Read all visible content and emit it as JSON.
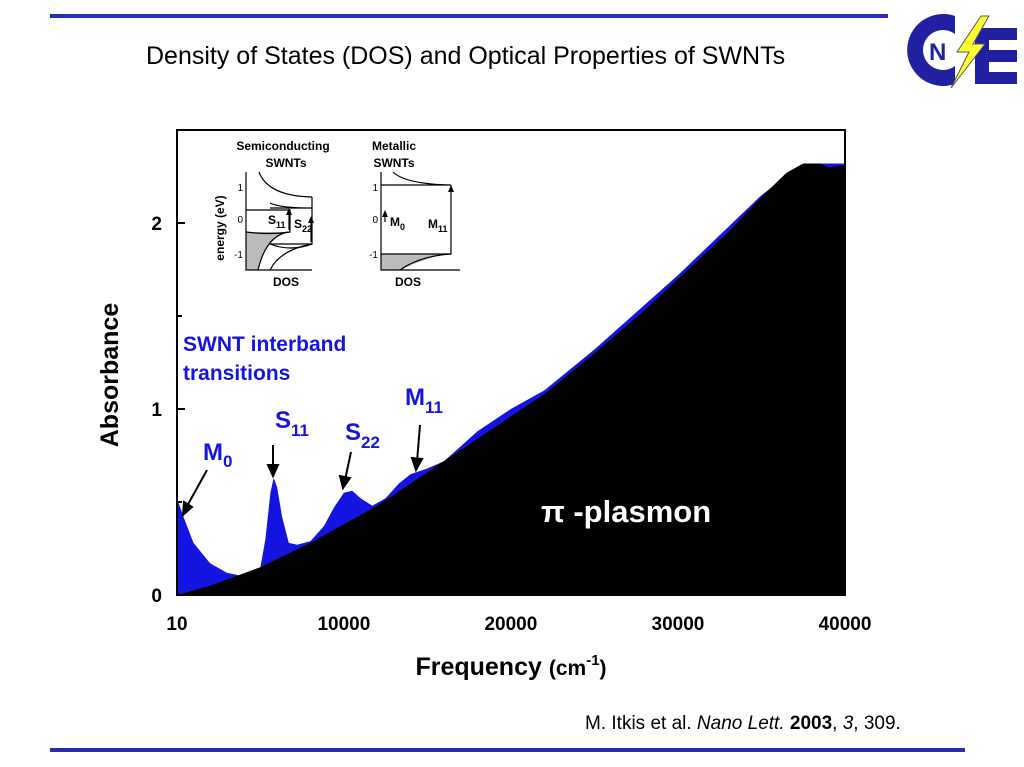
{
  "slide": {
    "title": "Density of States (DOS) and Optical Properties of SWNTs",
    "citation": {
      "authors": "M. Itkis et al.",
      "journal": "Nano Lett.",
      "year": "2003",
      "volume": "3",
      "page": ", 309."
    },
    "logo": {
      "letters": "CNE",
      "colors": {
        "primary": "#2020a0",
        "bolt": "#ffff33"
      }
    }
  },
  "chart_data": {
    "type": "area",
    "xlabel": "Frequency",
    "xlabel_unit": "(cm",
    "xlabel_exp": "-1",
    "xlabel_close": ")",
    "ylabel": "Absorbance",
    "xlim": [
      10,
      40000
    ],
    "ylim": [
      0,
      2.5
    ],
    "xticks": [
      {
        "v": 10,
        "label": "10"
      },
      {
        "v": 10000,
        "label": "10000"
      },
      {
        "v": 20000,
        "label": "20000"
      },
      {
        "v": 30000,
        "label": "30000"
      },
      {
        "v": 40000,
        "label": "40000"
      }
    ],
    "yticks": [
      {
        "v": 0,
        "label": "0"
      },
      {
        "v": 1,
        "label": "1"
      },
      {
        "v": 2,
        "label": "2"
      }
    ],
    "series": [
      {
        "name": "SWNT interband transitions",
        "color": "#1414e0",
        "x": [
          10,
          400,
          1000,
          2000,
          3000,
          4000,
          4600,
          5000,
          5300,
          5600,
          5800,
          6000,
          6300,
          6700,
          7200,
          8000,
          8800,
          9400,
          10000,
          10500,
          11000,
          11700,
          12500,
          13300,
          14000,
          15000,
          16000,
          17000,
          18000,
          20000,
          22000,
          25000,
          30000,
          35000,
          37500,
          40000
        ],
        "y": [
          0.52,
          0.42,
          0.28,
          0.17,
          0.12,
          0.1,
          0.11,
          0.15,
          0.3,
          0.55,
          0.63,
          0.58,
          0.42,
          0.28,
          0.27,
          0.29,
          0.37,
          0.47,
          0.55,
          0.56,
          0.52,
          0.48,
          0.52,
          0.6,
          0.65,
          0.68,
          0.72,
          0.8,
          0.88,
          1.0,
          1.1,
          1.32,
          1.72,
          2.15,
          2.32,
          2.32
        ]
      },
      {
        "name": "π-plasmon",
        "color": "#000000",
        "x": [
          10,
          2000,
          5000,
          8000,
          10000,
          12000,
          15000,
          17000,
          20000,
          22000,
          25000,
          28000,
          30000,
          33000,
          35000,
          36500,
          37500,
          38500,
          39000,
          40000
        ],
        "y": [
          0,
          0.05,
          0.15,
          0.28,
          0.38,
          0.48,
          0.66,
          0.78,
          0.96,
          1.08,
          1.3,
          1.53,
          1.7,
          1.95,
          2.14,
          2.27,
          2.32,
          2.32,
          2.3,
          2.31
        ]
      }
    ],
    "annotations": {
      "group": "SWNT interband",
      "group2": "transitions",
      "m0": "M",
      "m0_sub": "0",
      "s11": "S",
      "s11_sub": "11",
      "s22": "S",
      "s22_sub": "22",
      "m11": "M",
      "m11_sub": "11",
      "plasmon": "π -plasmon"
    },
    "inset": {
      "semi_title1": "Semiconducting",
      "semi_title2": "SWNTs",
      "met_title1": "Metallic",
      "met_title2": "SWNTs",
      "ylabel": "energy (eV)",
      "xlabel": "DOS",
      "yticks": [
        "1",
        "0",
        "-1"
      ],
      "s11": "S",
      "s11_sub": "11",
      "s22": "S",
      "s22_sub": "22",
      "m0": "M",
      "m0_sub": "0",
      "m11": "M",
      "m11_sub": "11"
    }
  }
}
